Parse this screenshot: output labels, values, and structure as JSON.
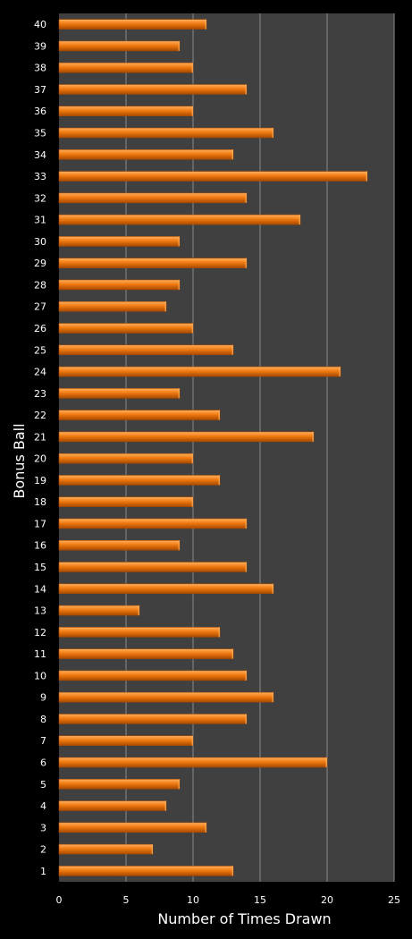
{
  "chart_data": {
    "type": "bar",
    "orientation": "horizontal",
    "xlabel": "Number of Times Drawn",
    "ylabel": "Bonus Ball",
    "xlim": [
      0,
      25
    ],
    "xticks": [
      0,
      5,
      10,
      15,
      20,
      25
    ],
    "grid": "vertical",
    "categories": [
      "1",
      "2",
      "3",
      "4",
      "5",
      "6",
      "7",
      "8",
      "9",
      "10",
      "11",
      "12",
      "13",
      "14",
      "15",
      "16",
      "17",
      "18",
      "19",
      "20",
      "21",
      "22",
      "23",
      "24",
      "25",
      "26",
      "27",
      "28",
      "29",
      "30",
      "31",
      "32",
      "33",
      "34",
      "35",
      "36",
      "37",
      "38",
      "39",
      "40"
    ],
    "values": [
      13,
      7,
      11,
      8,
      9,
      20,
      10,
      14,
      16,
      14,
      13,
      12,
      6,
      16,
      14,
      9,
      14,
      10,
      12,
      10,
      19,
      12,
      9,
      21,
      13,
      10,
      8,
      9,
      14,
      9,
      18,
      14,
      23,
      13,
      16,
      10,
      14,
      10,
      9,
      11
    ],
    "colors": {
      "background": "#000000",
      "plot_area": "#404040",
      "grid": "#8a8a8a",
      "bar_light": "#ffb060",
      "bar": "#f07a10",
      "bar_dark": "#a84a00",
      "text": "#ffffff"
    }
  }
}
